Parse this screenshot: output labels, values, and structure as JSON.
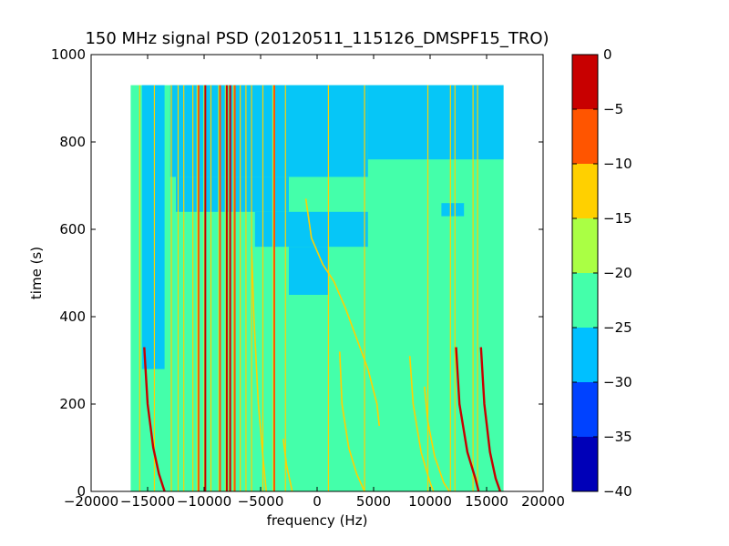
{
  "chart_data": {
    "type": "heatmap",
    "title": "150 MHz signal PSD (20120511_115126_DMSPF15_TRO)",
    "xlabel": "frequency (Hz)",
    "ylabel": "time (s)",
    "xlim": [
      -20000,
      20000
    ],
    "ylim": [
      0,
      1000
    ],
    "xticks": [
      -20000,
      -15000,
      -10000,
      -5000,
      0,
      5000,
      10000,
      15000,
      20000
    ],
    "xtick_labels": [
      "−20000",
      "−15000",
      "−10000",
      "−5000",
      "0",
      "5000",
      "10000",
      "15000",
      "20000"
    ],
    "yticks": [
      0,
      200,
      400,
      600,
      800,
      1000
    ],
    "ytick_labels": [
      "0",
      "200",
      "400",
      "600",
      "800",
      "1000"
    ],
    "data_extent": {
      "x": [
        -16500,
        16500
      ],
      "y": [
        0,
        930
      ]
    },
    "colorbar": {
      "range": [
        -40,
        0
      ],
      "levels": [
        -40,
        -35,
        -30,
        -25,
        -20,
        -15,
        -10,
        -5,
        0
      ],
      "tick_labels": [
        "−40",
        "−35",
        "−30",
        "−25",
        "−20",
        "−15",
        "−10",
        "−5",
        "0"
      ],
      "colors": [
        "#0000b8",
        "#0042ff",
        "#00c0ff",
        "#44ffaa",
        "#aaff44",
        "#ffd000",
        "#ff5500",
        "#c80000"
      ]
    },
    "background_level_color": "#44ffaa",
    "quiet_region_color": "#00c0ff",
    "quiet_regions": [
      {
        "x": [
          -15500,
          -13500
        ],
        "y": [
          280,
          930
        ]
      },
      {
        "x": [
          -13000,
          4500
        ],
        "y": [
          720,
          930
        ]
      },
      {
        "x": [
          4500,
          16500
        ],
        "y": [
          760,
          930
        ]
      },
      {
        "x": [
          -12500,
          -2500
        ],
        "y": [
          640,
          720
        ]
      },
      {
        "x": [
          -5500,
          4500
        ],
        "y": [
          560,
          640
        ]
      },
      {
        "x": [
          -2500,
          1000
        ],
        "y": [
          450,
          560
        ]
      },
      {
        "x": [
          11000,
          13000
        ],
        "y": [
          630,
          660
        ]
      }
    ],
    "vertical_lines": [
      {
        "x": -15700,
        "level": -15
      },
      {
        "x": -14400,
        "level": -15
      },
      {
        "x": -12900,
        "level": -15
      },
      {
        "x": -12300,
        "level": -15
      },
      {
        "x": -11800,
        "level": -15
      },
      {
        "x": -11000,
        "level": -15
      },
      {
        "x": -10500,
        "level": -10
      },
      {
        "x": -9900,
        "level": -5
      },
      {
        "x": -9400,
        "level": -15
      },
      {
        "x": -8600,
        "level": -10
      },
      {
        "x": -8000,
        "level": -5
      },
      {
        "x": -7700,
        "level": -5
      },
      {
        "x": -7300,
        "level": -10
      },
      {
        "x": -6800,
        "level": -15
      },
      {
        "x": -6300,
        "level": -15
      },
      {
        "x": -5800,
        "level": -15
      },
      {
        "x": -4800,
        "level": -15
      },
      {
        "x": -3800,
        "level": -10
      },
      {
        "x": -2800,
        "level": -15
      },
      {
        "x": 1000,
        "level": -15
      },
      {
        "x": 4200,
        "level": -15
      },
      {
        "x": 9800,
        "level": -15
      },
      {
        "x": 11800,
        "level": -15
      },
      {
        "x": 12200,
        "level": -15
      },
      {
        "x": 13800,
        "level": -15
      },
      {
        "x": 14200,
        "level": -15
      }
    ],
    "curves": [
      {
        "name": "",
        "level": -5,
        "points": [
          [
            -15300,
            330
          ],
          [
            -15000,
            200
          ],
          [
            -14500,
            100
          ],
          [
            -14000,
            40
          ],
          [
            -13500,
            0
          ]
        ]
      },
      {
        "name": "",
        "level": -15,
        "points": [
          [
            -1000,
            670
          ],
          [
            -500,
            580
          ],
          [
            500,
            520
          ],
          [
            1500,
            480
          ],
          [
            2500,
            420
          ],
          [
            3500,
            350
          ],
          [
            4500,
            280
          ],
          [
            5300,
            200
          ],
          [
            5500,
            150
          ]
        ]
      },
      {
        "name": "",
        "level": -15,
        "points": [
          [
            2000,
            320
          ],
          [
            2200,
            200
          ],
          [
            2800,
            100
          ],
          [
            3500,
            40
          ],
          [
            4200,
            0
          ]
        ]
      },
      {
        "name": "",
        "level": -15,
        "points": [
          [
            8200,
            310
          ],
          [
            8500,
            200
          ],
          [
            9200,
            90
          ],
          [
            10000,
            20
          ],
          [
            10300,
            0
          ]
        ]
      },
      {
        "name": "",
        "level": -15,
        "points": [
          [
            9500,
            240
          ],
          [
            9800,
            160
          ],
          [
            10400,
            80
          ],
          [
            11200,
            20
          ],
          [
            11700,
            0
          ]
        ]
      },
      {
        "name": "",
        "level": -5,
        "points": [
          [
            12300,
            330
          ],
          [
            12600,
            200
          ],
          [
            13300,
            90
          ],
          [
            14000,
            30
          ],
          [
            14300,
            0
          ]
        ]
      },
      {
        "name": "",
        "level": -5,
        "points": [
          [
            14500,
            330
          ],
          [
            14800,
            200
          ],
          [
            15300,
            90
          ],
          [
            15800,
            30
          ],
          [
            16200,
            0
          ]
        ]
      },
      {
        "name": "",
        "level": -15,
        "points": [
          [
            -5800,
            560
          ],
          [
            -5600,
            400
          ],
          [
            -5200,
            200
          ],
          [
            -4800,
            80
          ],
          [
            -4500,
            0
          ]
        ]
      },
      {
        "name": "",
        "level": -15,
        "points": [
          [
            -3000,
            120
          ],
          [
            -2700,
            60
          ],
          [
            -2200,
            0
          ]
        ]
      }
    ]
  }
}
